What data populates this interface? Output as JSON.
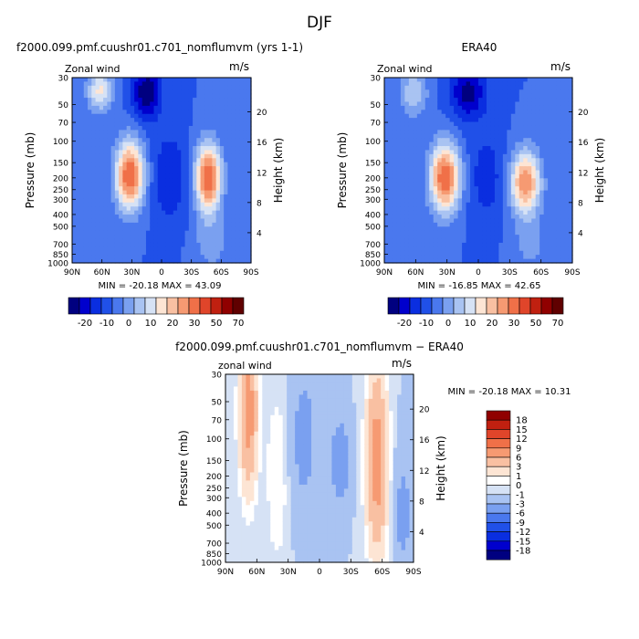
{
  "figure_title": "DJF",
  "chart_data": [
    {
      "type": "heatmap",
      "title": "f2000.099.pmf.cuushr01.c701_nomflumvm (yrs 1-1)",
      "left_label": "Zonal wind",
      "units": "m/s",
      "xlabel": "",
      "ylabel": "Pressure (mb)",
      "y2label": "Height (km)",
      "x_ticks": [
        "90N",
        "60N",
        "30N",
        "0",
        "30S",
        "60S",
        "90S"
      ],
      "y_ticks": [
        "30",
        "50",
        "70",
        "100",
        "150",
        "200",
        "250",
        "300",
        "400",
        "500",
        "700",
        "850",
        "1000"
      ],
      "y2_ticks": [
        "20",
        "16",
        "12",
        "8",
        "4"
      ],
      "ylim": [
        1000,
        30
      ],
      "xlim": [
        90,
        -90
      ],
      "min": -20.18,
      "max": 43.09,
      "stats_text": "MIN = -20.18   MAX =  43.09",
      "features": [
        {
          "lat": 62,
          "p": 38,
          "value": 21,
          "lat_sd": 9,
          "logp_sd": 0.28
        },
        {
          "lat": 32,
          "p": 190,
          "value": 41,
          "lat_sd": 10,
          "logp_sd": 0.45
        },
        {
          "lat": 15,
          "p": 40,
          "value": -20,
          "lat_sd": 10,
          "logp_sd": 0.35
        },
        {
          "lat": -8,
          "p": 200,
          "value": -10,
          "lat_sd": 12,
          "logp_sd": 0.6
        },
        {
          "lat": -47,
          "p": 200,
          "value": 42,
          "lat_sd": 9,
          "logp_sd": 0.45
        },
        {
          "lat": -50,
          "p": 700,
          "value": 8,
          "lat_sd": 12,
          "logp_sd": 0.35
        }
      ],
      "background": -5
    },
    {
      "type": "heatmap",
      "title": "ERA40",
      "left_label": "Zonal wind",
      "units": "m/s",
      "xlabel": "",
      "ylabel": "Pressure (mb)",
      "y2label": "Height (km)",
      "x_ticks": [
        "90N",
        "60N",
        "30N",
        "0",
        "30S",
        "60S",
        "90S"
      ],
      "y_ticks": [
        "30",
        "50",
        "70",
        "100",
        "150",
        "200",
        "250",
        "300",
        "400",
        "500",
        "700",
        "850",
        "1000"
      ],
      "y2_ticks": [
        "20",
        "16",
        "12",
        "8",
        "4"
      ],
      "ylim": [
        1000,
        30
      ],
      "xlim": [
        90,
        -90
      ],
      "min": -16.85,
      "max": 42.65,
      "stats_text": "MIN = -16.85   MAX =  42.65",
      "features": [
        {
          "lat": 62,
          "p": 40,
          "value": 15,
          "lat_sd": 9,
          "logp_sd": 0.3
        },
        {
          "lat": 32,
          "p": 200,
          "value": 41,
          "lat_sd": 10,
          "logp_sd": 0.45
        },
        {
          "lat": 10,
          "p": 40,
          "value": -17,
          "lat_sd": 12,
          "logp_sd": 0.35
        },
        {
          "lat": -8,
          "p": 200,
          "value": -8,
          "lat_sd": 12,
          "logp_sd": 0.6
        },
        {
          "lat": -45,
          "p": 220,
          "value": 35,
          "lat_sd": 10,
          "logp_sd": 0.42
        },
        {
          "lat": -50,
          "p": 700,
          "value": 7,
          "lat_sd": 12,
          "logp_sd": 0.35
        }
      ],
      "background": -5
    },
    {
      "type": "heatmap",
      "title": "f2000.099.pmf.cuushr01.c701_nomflumvm − ERA40",
      "left_label": "zonal wind",
      "units": "m/s",
      "xlabel": "",
      "ylabel": "Pressure (mb)",
      "y2label": "Height (km)",
      "x_ticks": [
        "90N",
        "60N",
        "30N",
        "0",
        "30S",
        "60S",
        "90S"
      ],
      "y_ticks": [
        "30",
        "50",
        "70",
        "100",
        "150",
        "200",
        "250",
        "300",
        "400",
        "500",
        "700",
        "850",
        "1000"
      ],
      "y2_ticks": [
        "20",
        "16",
        "12",
        "8",
        "4"
      ],
      "ylim": [
        1000,
        30
      ],
      "xlim": [
        90,
        -90
      ],
      "min": -20.18,
      "max": 10.31,
      "stats_text": "MIN = -20.18   MAX =  10.31",
      "features": [
        {
          "lat": 68,
          "p": 60,
          "value": 9,
          "lat_sd": 6,
          "logp_sd": 1.0
        },
        {
          "lat": 40,
          "p": 200,
          "value": 2,
          "lat_sd": 8,
          "logp_sd": 1.2
        },
        {
          "lat": 15,
          "p": 100,
          "value": -3,
          "lat_sd": 10,
          "logp_sd": 1.0
        },
        {
          "lat": -20,
          "p": 150,
          "value": -5,
          "lat_sd": 6,
          "logp_sd": 0.5
        },
        {
          "lat": -55,
          "p": 150,
          "value": 9,
          "lat_sd": 7,
          "logp_sd": 1.2
        },
        {
          "lat": -80,
          "p": 400,
          "value": -3,
          "lat_sd": 6,
          "logp_sd": 0.8
        }
      ],
      "background": -1
    }
  ],
  "colorbars": [
    {
      "orientation": "horizontal",
      "labels": [
        "-20",
        "-10",
        "0",
        "10",
        "20",
        "30",
        "50",
        "70"
      ],
      "colors": [
        "#000080",
        "#0000cd",
        "#0a2ee0",
        "#2050e8",
        "#4a78ee",
        "#7aa0f0",
        "#a9c3f2",
        "#d6e2f5",
        "#fde5d4",
        "#f9c0a2",
        "#f69a72",
        "#f07048",
        "#e0452a",
        "#c02010",
        "#900000",
        "#600000"
      ]
    },
    {
      "orientation": "horizontal",
      "labels": [
        "-20",
        "-10",
        "0",
        "10",
        "20",
        "30",
        "50",
        "70"
      ],
      "colors": [
        "#000080",
        "#0000cd",
        "#0a2ee0",
        "#2050e8",
        "#4a78ee",
        "#7aa0f0",
        "#a9c3f2",
        "#d6e2f5",
        "#fde5d4",
        "#f9c0a2",
        "#f69a72",
        "#f07048",
        "#e0452a",
        "#c02010",
        "#900000",
        "#600000"
      ]
    },
    {
      "orientation": "vertical",
      "labels": [
        "18",
        "15",
        "12",
        "9",
        "6",
        "3",
        "1",
        "0",
        "-1",
        "-3",
        "-6",
        "-9",
        "-12",
        "-15",
        "-18"
      ],
      "colors": [
        "#900000",
        "#c02010",
        "#e0452a",
        "#f07048",
        "#f69a72",
        "#f9c0a2",
        "#fde5d4",
        "#ffffff",
        "#d6e2f5",
        "#a9c3f2",
        "#7aa0f0",
        "#4a78ee",
        "#2050e8",
        "#0a2ee0",
        "#0000cd",
        "#000080"
      ]
    }
  ]
}
